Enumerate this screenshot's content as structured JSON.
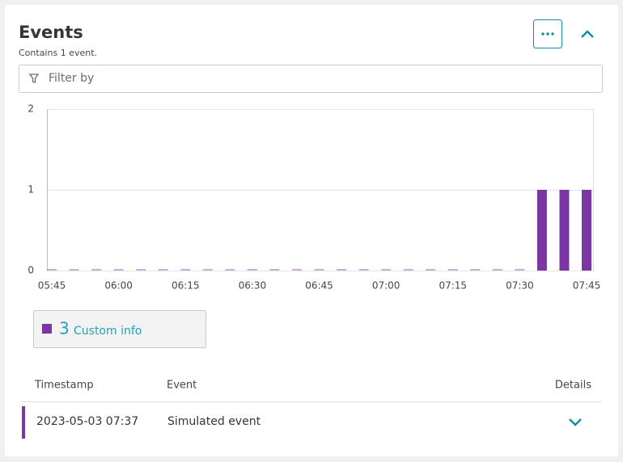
{
  "header": {
    "title": "Events",
    "subtitle": "Contains 1 event."
  },
  "filter": {
    "placeholder": "Filter by"
  },
  "chart_data": {
    "type": "bar",
    "categories": [
      "05:45",
      null,
      null,
      "06:00",
      null,
      null,
      "06:15",
      null,
      null,
      "06:30",
      null,
      null,
      "06:45",
      null,
      null,
      "07:00",
      null,
      null,
      "07:15",
      null,
      null,
      "07:30",
      null,
      null,
      "07:45"
    ],
    "series": [
      {
        "name": "Custom info",
        "color": "#7b36a3",
        "values": [
          0,
          0,
          0,
          0,
          0,
          0,
          0,
          0,
          0,
          0,
          0,
          0,
          0,
          0,
          0,
          0,
          0,
          0,
          0,
          0,
          0,
          0,
          1,
          1,
          1
        ]
      }
    ],
    "ylim": [
      0,
      2
    ],
    "yticks": [
      0,
      1,
      2
    ],
    "grid": true
  },
  "legend": {
    "count": 3
  },
  "table": {
    "headers": [
      "Timestamp",
      "Event",
      "Details"
    ],
    "rows": [
      [
        "2023-05-03 07:37",
        "Simulated event"
      ]
    ]
  }
}
